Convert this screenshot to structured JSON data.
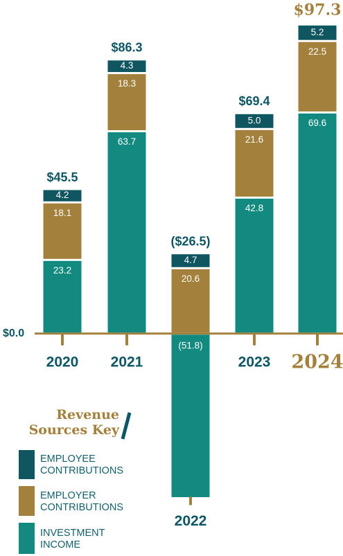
{
  "chart_data": {
    "type": "stacked_bar",
    "categories": [
      "2020",
      "2021",
      "2022",
      "2023",
      "2024"
    ],
    "series": [
      {
        "name": "INVESTMENT INCOME",
        "color": "#138a80",
        "values": [
          23.2,
          63.7,
          -51.8,
          42.8,
          69.6
        ],
        "value_labels": [
          "23.2",
          "63.7",
          "(51.8)",
          "42.8",
          "69.6"
        ]
      },
      {
        "name": "EMPLOYER CONTRIBUTIONS",
        "color": "#a3803b",
        "values": [
          18.1,
          18.3,
          20.6,
          21.6,
          22.5
        ]
      },
      {
        "name": "EMPLOYEE CONTRIBUTIONS",
        "color": "#0f5661",
        "values": [
          4.2,
          4.3,
          4.7,
          5.0,
          5.2
        ],
        "value_labels": [
          "4.2",
          "4.3",
          "4.7",
          "5.0",
          "5.2"
        ]
      }
    ],
    "totals": [
      45.5,
      86.3,
      -26.5,
      69.4,
      97.3
    ],
    "total_labels": [
      "$45.5",
      "$86.3",
      "($26.5)",
      "$69.4",
      "$97.3"
    ],
    "ylim": [
      -70,
      105
    ],
    "yticks": [
      {
        "value": 0,
        "label": "$0.0"
      }
    ],
    "highlight_category": "2024",
    "highlight_color": "#a3803b",
    "text_color": "#0d5663",
    "legend_title": "Revenue Sources Key"
  }
}
